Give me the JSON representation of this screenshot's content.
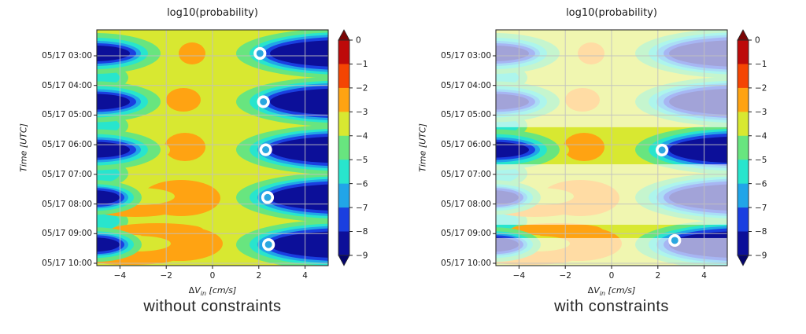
{
  "colors": {
    "background": "#ffffff",
    "field_bg": "#d8e831",
    "green": "#68e57f",
    "cyan": "#28e5cd",
    "light_blue": "#21a5e8",
    "blue": "#1a3fe0",
    "navy": "#0c0f99",
    "orange": "#ffa312",
    "orange_red": "#f44503",
    "dark_red": "#bd0a0a",
    "cbar_over": "#7a0505",
    "cbar_under": "#05056b",
    "grid": "#c0c0c0",
    "spine": "#2a2a2a",
    "marker_fill": "#2ba7e0",
    "marker_ring": "#ffffff",
    "fade_overlay": "#ffffff",
    "text": "#1a1a1a"
  },
  "chart_data": [
    {
      "panel": "left",
      "type": "heatmap",
      "title": "log10(probability)",
      "caption": "without constraints",
      "xlabel": "ΔV_in [cm/s]",
      "xlabel_parts": {
        "delta": "Δ",
        "v": "V",
        "sub": "in",
        "units": "[cm/s]"
      },
      "ylabel": "Time [UTC]",
      "value_scale": "log10(probability)",
      "xlim_cm_s": [
        -5,
        5
      ],
      "x_tick_values": [
        -4,
        -2,
        0,
        2,
        4
      ],
      "x_tick_labels": [
        "−4",
        "−2",
        "0",
        "2",
        "4"
      ],
      "ylim_hours": [
        2.13,
        10.08
      ],
      "y_tick_hours": [
        3,
        4,
        5,
        6,
        7,
        8,
        9,
        10
      ],
      "y_tick_labels": [
        "05/17 03:00",
        "05/17 04:00",
        "05/17 05:00",
        "05/17 06:00",
        "05/17 07:00",
        "05/17 08:00",
        "05/17 09:00",
        "05/17 10:00"
      ],
      "grid": true,
      "colorbar": {
        "extend": "both",
        "tick_values": [
          0,
          -1,
          -2,
          -3,
          -4,
          -5,
          -6,
          -7,
          -8,
          -9
        ],
        "tick_labels": [
          "0",
          "−1",
          "−2",
          "−3",
          "−4",
          "−5",
          "−6",
          "−7",
          "−8",
          "−9"
        ],
        "segment_colors": [
          "#bd0a0a",
          "#f44503",
          "#ffa312",
          "#d8e831",
          "#68e57f",
          "#28e5cd",
          "#21a5e8",
          "#1a3fe0",
          "#0c0f99"
        ]
      },
      "periapsis_passes_hours": [
        2.92,
        4.55,
        6.17,
        7.78,
        9.37
      ],
      "field_structure": {
        "background_level_log10p": "-3 to -4",
        "high_prob_ridge": "log10p -2 to -3 orange ridges near ΔV ≈ -2..0 cm/s at each pass",
        "low_prob_lobes": "log10p -8 to -9 navy lobes at ΔV ≈ -5..-4 and ΔV ≈ 3..5 cm/s at each pass"
      },
      "markers": [
        {
          "x_cm_s": 2.05,
          "time_h": 2.92,
          "time_label": "05/17 02:55"
        },
        {
          "x_cm_s": 2.2,
          "time_h": 4.55,
          "time_label": "05/17 04:33"
        },
        {
          "x_cm_s": 2.3,
          "time_h": 6.17,
          "time_label": "05/17 06:10"
        },
        {
          "x_cm_s": 2.38,
          "time_h": 7.78,
          "time_label": "05/17 07:47"
        },
        {
          "x_cm_s": 2.42,
          "time_h": 9.37,
          "time_label": "05/17 09:22"
        }
      ]
    },
    {
      "panel": "right",
      "type": "heatmap",
      "title": "log10(probability)",
      "caption": "with constraints",
      "xlabel": "ΔV_in [cm/s]",
      "xlabel_parts": {
        "delta": "Δ",
        "v": "V",
        "sub": "in",
        "units": "[cm/s]"
      },
      "ylabel": "Time [UTC]",
      "value_scale": "log10(probability)",
      "xlim_cm_s": [
        -5,
        5
      ],
      "x_tick_values": [
        -4,
        -2,
        0,
        2,
        4
      ],
      "x_tick_labels": [
        "−4",
        "−2",
        "0",
        "2",
        "4"
      ],
      "ylim_hours": [
        2.13,
        10.08
      ],
      "y_tick_hours": [
        3,
        4,
        5,
        6,
        7,
        8,
        9,
        10
      ],
      "y_tick_labels": [
        "05/17 03:00",
        "05/17 04:00",
        "05/17 05:00",
        "05/17 06:00",
        "05/17 07:00",
        "05/17 08:00",
        "05/17 09:00",
        "05/17 10:00"
      ],
      "grid": true,
      "colorbar": {
        "extend": "both",
        "tick_values": [
          0,
          -1,
          -2,
          -3,
          -4,
          -5,
          -6,
          -7,
          -8,
          -9
        ],
        "tick_labels": [
          "0",
          "−1",
          "−2",
          "−3",
          "−4",
          "−5",
          "−6",
          "−7",
          "−8",
          "−9"
        ],
        "segment_colors": [
          "#bd0a0a",
          "#f44503",
          "#ffa312",
          "#d8e831",
          "#68e57f",
          "#28e5cd",
          "#21a5e8",
          "#1a3fe0",
          "#0c0f99"
        ]
      },
      "periapsis_passes_hours": [
        2.92,
        4.55,
        6.17,
        7.78,
        9.37
      ],
      "constrained_windows": [
        {
          "start_h": 5.41,
          "end_h": 6.66,
          "label": "≈05:25–06:40"
        },
        {
          "start_h": 8.7,
          "end_h": 9.15,
          "label": "≈08:42–09:09"
        }
      ],
      "faded_overlay_opacity": 0.62,
      "markers": [
        {
          "x_cm_s": 2.18,
          "time_h": 6.18,
          "time_label": "05/17 06:11"
        },
        {
          "x_cm_s": 2.73,
          "time_h": 9.23,
          "time_label": "05/17 09:14"
        }
      ]
    }
  ]
}
